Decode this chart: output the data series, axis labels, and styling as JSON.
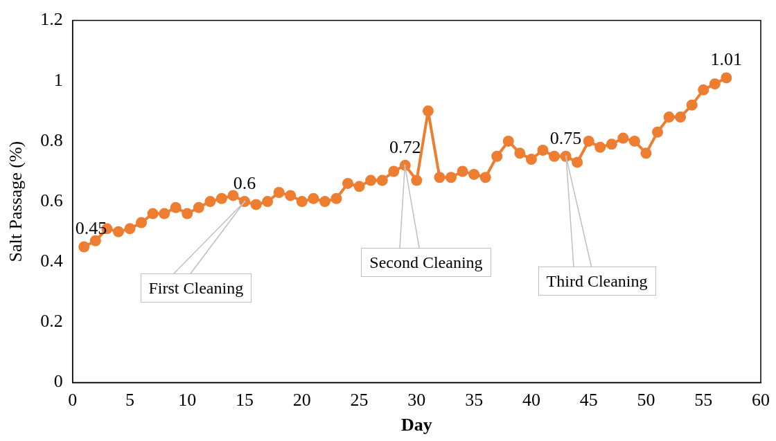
{
  "chart_data": {
    "type": "line",
    "xlabel": "Day",
    "ylabel": "Salt Passage (%)",
    "x": [
      1,
      2,
      3,
      4,
      5,
      6,
      7,
      8,
      9,
      10,
      11,
      12,
      13,
      14,
      15,
      16,
      17,
      18,
      19,
      20,
      21,
      22,
      23,
      24,
      25,
      26,
      27,
      28,
      29,
      30,
      31,
      32,
      33,
      34,
      35,
      36,
      37,
      38,
      39,
      40,
      41,
      42,
      43,
      44,
      45,
      46,
      47,
      48,
      49,
      50,
      51,
      52,
      53,
      54,
      55,
      56,
      57
    ],
    "series": [
      {
        "color": "#ed7d31",
        "values": [
          0.45,
          0.47,
          0.51,
          0.5,
          0.51,
          0.53,
          0.56,
          0.56,
          0.58,
          0.56,
          0.58,
          0.6,
          0.61,
          0.62,
          0.6,
          0.59,
          0.6,
          0.63,
          0.62,
          0.6,
          0.61,
          0.6,
          0.61,
          0.66,
          0.65,
          0.67,
          0.67,
          0.7,
          0.72,
          0.67,
          0.9,
          0.68,
          0.68,
          0.7,
          0.69,
          0.68,
          0.75,
          0.8,
          0.76,
          0.74,
          0.77,
          0.75,
          0.75,
          0.73,
          0.8,
          0.78,
          0.79,
          0.81,
          0.8,
          0.76,
          0.83,
          0.88,
          0.88,
          0.92,
          0.97,
          0.99,
          1.01
        ],
        "value_labels": [
          "0.45",
          null,
          null,
          null,
          null,
          null,
          null,
          null,
          null,
          null,
          null,
          null,
          null,
          null,
          "0.6",
          null,
          null,
          null,
          null,
          null,
          null,
          null,
          null,
          null,
          null,
          null,
          null,
          null,
          "0.72",
          null,
          null,
          null,
          null,
          null,
          null,
          null,
          null,
          null,
          null,
          null,
          null,
          null,
          "0.75",
          null,
          null,
          null,
          null,
          null,
          null,
          null,
          null,
          null,
          null,
          null,
          null,
          null,
          "1.01"
        ]
      }
    ],
    "xlim": [
      0,
      60
    ],
    "xticks": [
      0,
      5,
      10,
      15,
      20,
      25,
      30,
      35,
      40,
      45,
      50,
      55,
      60
    ],
    "ylim": [
      0,
      1.2
    ],
    "yticks": [
      0,
      0.2,
      0.4,
      0.6,
      0.8,
      1,
      1.2
    ],
    "marker": "circle",
    "line_style": "solid",
    "grid": false,
    "legend": false,
    "annotations": [
      "First Cleaning",
      "Second Cleaning",
      "Third Cleaning"
    ]
  }
}
